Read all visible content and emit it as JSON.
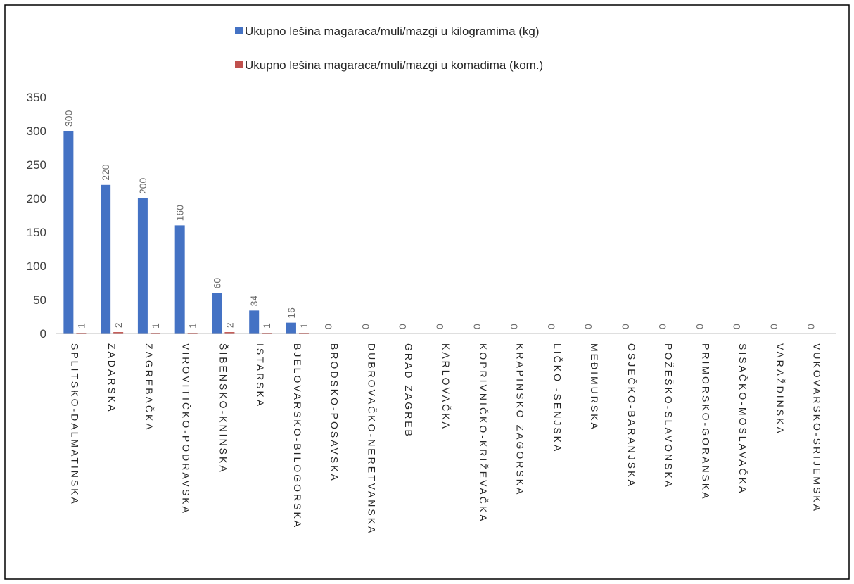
{
  "chart_data": {
    "type": "bar",
    "title": "",
    "xlabel": "",
    "ylabel": "",
    "ylim": [
      0,
      350
    ],
    "yticks": [
      0,
      50,
      100,
      150,
      200,
      250,
      300,
      350
    ],
    "grid": false,
    "legend_position": "top",
    "categories": [
      "SPLITSKO-DALMATINSKA",
      "ZADARSKA",
      "ZAGREBAČKA",
      "VIROVITIČKO-PODRAVSKA",
      "ŠIBENSKO-KNINSKA",
      "ISTARSKA",
      "BJELOVARSKO-BILOGORSKA",
      "BRODSKO-POSAVSKA",
      "DUBROVAČKO-NERETVANSKA",
      "GRAD ZAGREB",
      "KARLOVAČKA",
      "KOPRIVNIČKO-KRIŽEVAČKA",
      "KRAPINSKO ZAGORSKA",
      "LIČKO -SENJSKA",
      "MEĐIMURSKA",
      "OSJEČKO-BARANJSKA",
      "POŽEŠKO-SLAVONSKA",
      "PRIMORSKO-GORANSKA",
      "SISAČKO-MOSLAVAČKA",
      "VARAŽDINSKA",
      "VUKOVARSKO-SRIJEMSKA"
    ],
    "series": [
      {
        "name": "Ukupno lešina magaraca/muli/mazgi u kilogramima (kg)",
        "color": "#4472c4",
        "values": [
          300,
          220,
          200,
          160,
          60,
          34,
          16,
          0,
          0,
          0,
          0,
          0,
          0,
          0,
          0,
          0,
          0,
          0,
          0,
          0,
          0
        ],
        "labels": [
          "300",
          "220",
          "200",
          "160",
          "60",
          "34",
          "16",
          "0",
          "0",
          "0",
          "0",
          "0",
          "0",
          "0",
          "0",
          "0",
          "0",
          "0",
          "0",
          "0",
          "0"
        ]
      },
      {
        "name": "Ukupno lešina magaraca/muli/mazgi u komadima (kom.)",
        "color": "#c0504d",
        "values": [
          1,
          2,
          1,
          1,
          2,
          1,
          1,
          0,
          0,
          0,
          0,
          0,
          0,
          0,
          0,
          0,
          0,
          0,
          0,
          0,
          0
        ],
        "labels": [
          "1",
          "2",
          "1",
          "1",
          "2",
          "1",
          "1",
          "",
          "",
          "",
          "",
          "",
          "",
          "",
          "",
          "",
          "",
          "",
          "",
          "",
          ""
        ]
      }
    ]
  }
}
